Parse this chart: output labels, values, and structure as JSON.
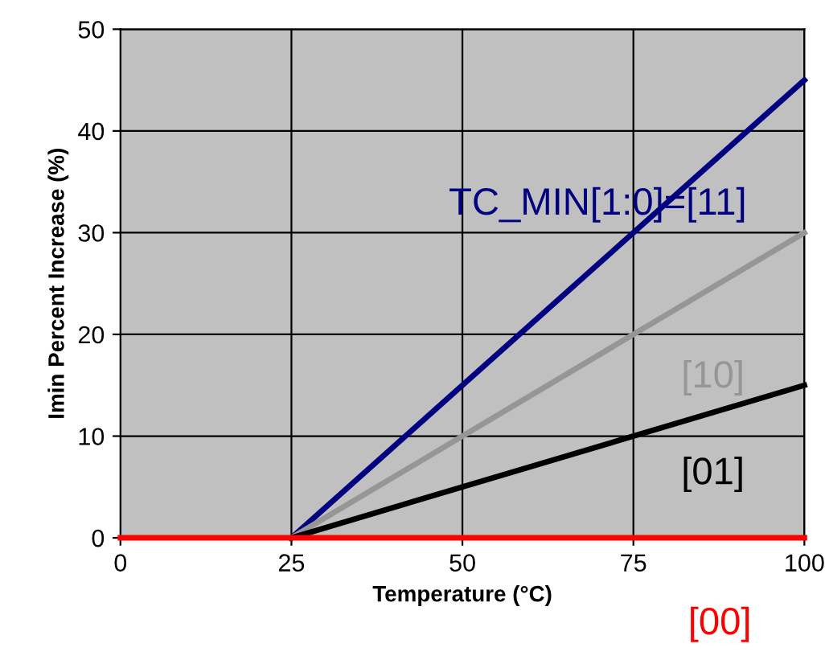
{
  "chart_data": {
    "type": "line",
    "xlabel": "Temperature (°C)",
    "ylabel": "Imin Percent Increase (%)",
    "series": [
      {
        "name": "TC_MIN[1:0]=[11]",
        "color": "#000080",
        "x": [
          25,
          100
        ],
        "values": [
          0,
          45
        ]
      },
      {
        "name": "[10]",
        "color": "#969696",
        "x": [
          25,
          100
        ],
        "values": [
          0,
          30
        ]
      },
      {
        "name": "[01]",
        "color": "#000000",
        "x": [
          25,
          100
        ],
        "values": [
          0,
          15
        ]
      },
      {
        "name": "[00]",
        "color": "#ff0000",
        "x": [
          0,
          100
        ],
        "values": [
          0,
          0
        ]
      }
    ],
    "xlim": [
      0,
      100
    ],
    "xticks": [
      0,
      25,
      50,
      75,
      100
    ],
    "ylim": [
      0,
      50
    ],
    "yticks": [
      0,
      10,
      20,
      30,
      40,
      50
    ],
    "grid": true,
    "marker": "none",
    "line_style": "solid",
    "legend": false
  }
}
